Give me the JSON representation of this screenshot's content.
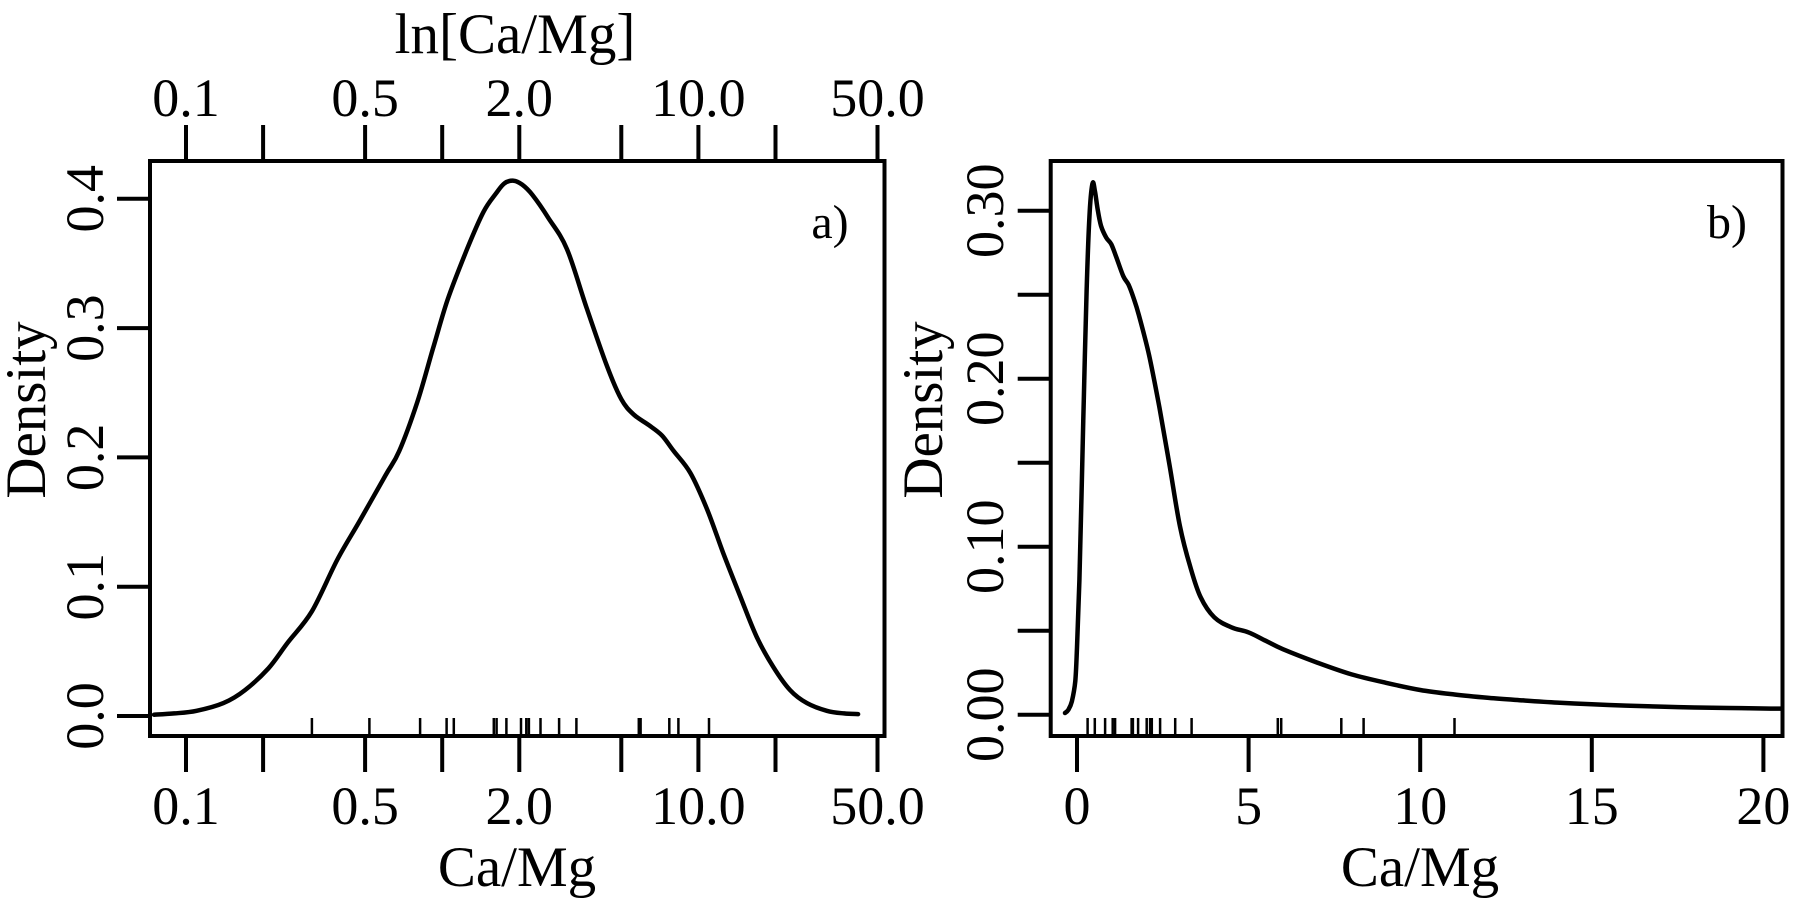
{
  "figure": {
    "background_color": "#ffffff",
    "line_color": "#000000",
    "description": "Two kernel density plots of Ca/Mg ratios"
  },
  "chart_data": [
    {
      "id": "a",
      "type": "line",
      "subtype": "density",
      "panel_label": "a)",
      "top_axis_title": "ln[Ca/Mg]",
      "xlabel": "Ca/Mg",
      "ylabel": "Density",
      "x_scale": "log",
      "xlim": [
        0.072,
        54
      ],
      "ylim": [
        -0.016,
        0.428
      ],
      "has_top_axis": true,
      "grid": false,
      "legend": null,
      "x_ticks": [
        {
          "v": 0.1,
          "label": "0.1"
        },
        {
          "v": 0.2,
          "label": null
        },
        {
          "v": 0.5,
          "label": "0.5"
        },
        {
          "v": 1.0,
          "label": null
        },
        {
          "v": 2.0,
          "label": "2.0"
        },
        {
          "v": 5.0,
          "label": null
        },
        {
          "v": 10.0,
          "label": "10.0"
        },
        {
          "v": 20.0,
          "label": null
        },
        {
          "v": 50.0,
          "label": "50.0"
        }
      ],
      "y_ticks": [
        {
          "v": 0.0,
          "label": "0.0"
        },
        {
          "v": 0.1,
          "label": "0.1"
        },
        {
          "v": 0.2,
          "label": "0.2"
        },
        {
          "v": 0.3,
          "label": "0.3"
        },
        {
          "v": 0.4,
          "label": "0.4"
        }
      ],
      "peak": {
        "x": 1.9,
        "density": 0.414
      },
      "shoulder": {
        "x": 6.5,
        "density": 0.225
      },
      "curve": [
        [
          0.075,
          0.001
        ],
        [
          0.09,
          0.002
        ],
        [
          0.11,
          0.004
        ],
        [
          0.14,
          0.01
        ],
        [
          0.17,
          0.02
        ],
        [
          0.21,
          0.037
        ],
        [
          0.25,
          0.057
        ],
        [
          0.31,
          0.081
        ],
        [
          0.39,
          0.121
        ],
        [
          0.48,
          0.152
        ],
        [
          0.6,
          0.186
        ],
        [
          0.68,
          0.205
        ],
        [
          0.8,
          0.243
        ],
        [
          0.92,
          0.284
        ],
        [
          1.05,
          0.322
        ],
        [
          1.25,
          0.361
        ],
        [
          1.45,
          0.39
        ],
        [
          1.62,
          0.404
        ],
        [
          1.75,
          0.412
        ],
        [
          1.9,
          0.414
        ],
        [
          2.05,
          0.411
        ],
        [
          2.25,
          0.403
        ],
        [
          2.6,
          0.385
        ],
        [
          3.07,
          0.361
        ],
        [
          3.67,
          0.315
        ],
        [
          4.39,
          0.271
        ],
        [
          5.0,
          0.245
        ],
        [
          5.6,
          0.233
        ],
        [
          6.4,
          0.225
        ],
        [
          7.2,
          0.217
        ],
        [
          8.0,
          0.205
        ],
        [
          9.3,
          0.188
        ],
        [
          10.8,
          0.16
        ],
        [
          12.5,
          0.126
        ],
        [
          14.6,
          0.092
        ],
        [
          16.9,
          0.061
        ],
        [
          19.6,
          0.038
        ],
        [
          22.8,
          0.02
        ],
        [
          26.5,
          0.01
        ],
        [
          31.7,
          0.004
        ],
        [
          37.0,
          0.002
        ],
        [
          42.0,
          0.0015
        ]
      ],
      "rug_values": [
        0.31,
        0.52,
        0.82,
        1.04,
        1.11,
        1.59,
        1.63,
        1.78,
        2.03,
        2.13,
        2.18,
        2.42,
        2.86,
        3.34,
        5.85,
        5.95,
        7.7,
        8.35,
        11.0
      ]
    },
    {
      "id": "b",
      "type": "line",
      "subtype": "density",
      "panel_label": "b)",
      "top_axis_title": null,
      "xlabel": "Ca/Mg",
      "ylabel": "Density",
      "x_scale": "linear",
      "xlim": [
        -0.8,
        20.8
      ],
      "ylim": [
        -0.013,
        0.33
      ],
      "has_top_axis": false,
      "grid": false,
      "legend": null,
      "x_ticks": [
        {
          "v": 0,
          "label": "0"
        },
        {
          "v": 5,
          "label": "5"
        },
        {
          "v": 10,
          "label": "10"
        },
        {
          "v": 15,
          "label": "15"
        },
        {
          "v": 20,
          "label": "20"
        }
      ],
      "y_ticks": [
        {
          "v": 0.0,
          "label": "0.00"
        },
        {
          "v": 0.05,
          "label": null
        },
        {
          "v": 0.1,
          "label": "0.10"
        },
        {
          "v": 0.15,
          "label": null
        },
        {
          "v": 0.2,
          "label": "0.20"
        },
        {
          "v": 0.25,
          "label": null
        },
        {
          "v": 0.3,
          "label": "0.30"
        }
      ],
      "peak": {
        "x": 0.45,
        "density": 0.316
      },
      "shoulder": {
        "x": 1.0,
        "density": 0.28
      },
      "curve": [
        [
          -0.35,
          0.001
        ],
        [
          -0.25,
          0.003
        ],
        [
          -0.15,
          0.008
        ],
        [
          -0.05,
          0.02
        ],
        [
          0.0,
          0.04
        ],
        [
          0.07,
          0.08
        ],
        [
          0.13,
          0.13
        ],
        [
          0.2,
          0.19
        ],
        [
          0.28,
          0.252
        ],
        [
          0.36,
          0.296
        ],
        [
          0.45,
          0.316
        ],
        [
          0.52,
          0.312
        ],
        [
          0.6,
          0.301
        ],
        [
          0.7,
          0.291
        ],
        [
          0.85,
          0.284
        ],
        [
          1.0,
          0.28
        ],
        [
          1.15,
          0.272
        ],
        [
          1.35,
          0.261
        ],
        [
          1.5,
          0.256
        ],
        [
          1.65,
          0.248
        ],
        [
          1.8,
          0.238
        ],
        [
          2.1,
          0.214
        ],
        [
          2.4,
          0.183
        ],
        [
          2.7,
          0.148
        ],
        [
          3.0,
          0.112
        ],
        [
          3.3,
          0.088
        ],
        [
          3.6,
          0.07
        ],
        [
          4.0,
          0.058
        ],
        [
          4.5,
          0.052
        ],
        [
          5.0,
          0.049
        ],
        [
          5.5,
          0.044
        ],
        [
          6.0,
          0.039
        ],
        [
          7.0,
          0.031
        ],
        [
          8.0,
          0.024
        ],
        [
          9.0,
          0.019
        ],
        [
          10.0,
          0.0147
        ],
        [
          11.0,
          0.012
        ],
        [
          12.0,
          0.01
        ],
        [
          13.0,
          0.0085
        ],
        [
          14.0,
          0.0072
        ],
        [
          15.0,
          0.0062
        ],
        [
          16.0,
          0.0054
        ],
        [
          17.0,
          0.0048
        ],
        [
          18.0,
          0.0043
        ],
        [
          19.0,
          0.004
        ],
        [
          20.0,
          0.0037
        ],
        [
          20.6,
          0.0036
        ]
      ],
      "rug_values": [
        0.31,
        0.52,
        0.82,
        1.04,
        1.11,
        1.59,
        1.63,
        1.78,
        2.03,
        2.13,
        2.18,
        2.42,
        2.86,
        3.34,
        5.85,
        5.95,
        7.7,
        8.35,
        11.0
      ]
    }
  ]
}
